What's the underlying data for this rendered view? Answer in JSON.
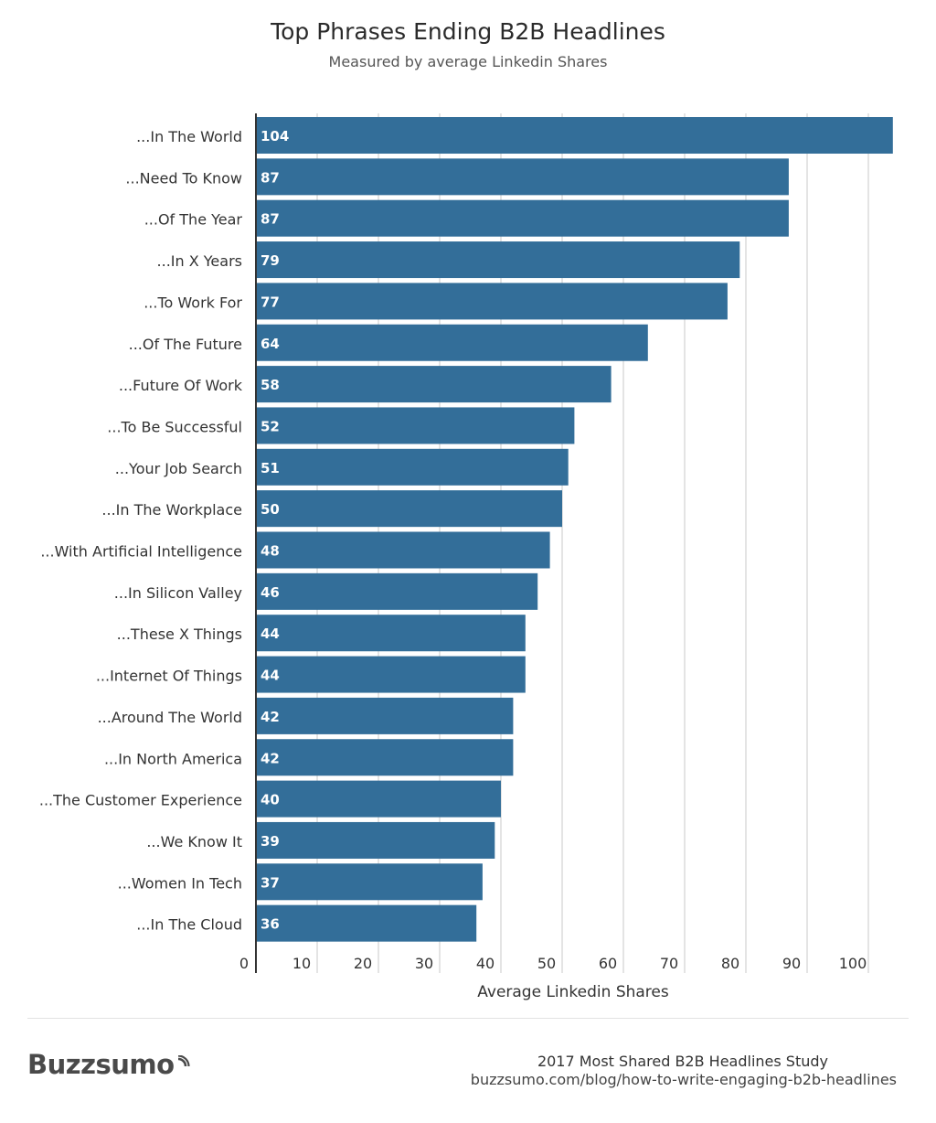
{
  "chart_data": {
    "type": "bar",
    "orientation": "horizontal",
    "title": "Top Phrases Ending B2B Headlines",
    "subtitle": "Measured by average Linkedin Shares",
    "xlabel": "Average Linkedin Shares",
    "ylabel": "",
    "xlim": [
      0,
      104
    ],
    "xticks": [
      0,
      10,
      20,
      30,
      40,
      50,
      60,
      70,
      80,
      90,
      100
    ],
    "grid": true,
    "bar_color": "#336e99",
    "categories": [
      "...In The World",
      "...Need To Know",
      "...Of The Year",
      "...In X Years",
      "...To Work For",
      "...Of The Future",
      "...Future Of Work",
      "...To Be Successful",
      "...Your Job Search",
      "...In The Workplace",
      "...With Artificial Intelligence",
      "...In Silicon Valley",
      "...These X Things",
      "...Internet Of Things",
      "...Around The World",
      "...In North America",
      "...The Customer Experience",
      "...We Know It",
      "...Women In Tech",
      "...In The Cloud"
    ],
    "values": [
      104,
      87,
      87,
      79,
      77,
      64,
      58,
      52,
      51,
      50,
      48,
      46,
      44,
      44,
      42,
      42,
      40,
      39,
      37,
      36
    ]
  },
  "footer": {
    "brand": "Buzzsumo",
    "study_title": "2017 Most Shared B2B Headlines Study",
    "url": "buzzsumo.com/blog/how-to-write-engaging-b2b-headlines"
  }
}
